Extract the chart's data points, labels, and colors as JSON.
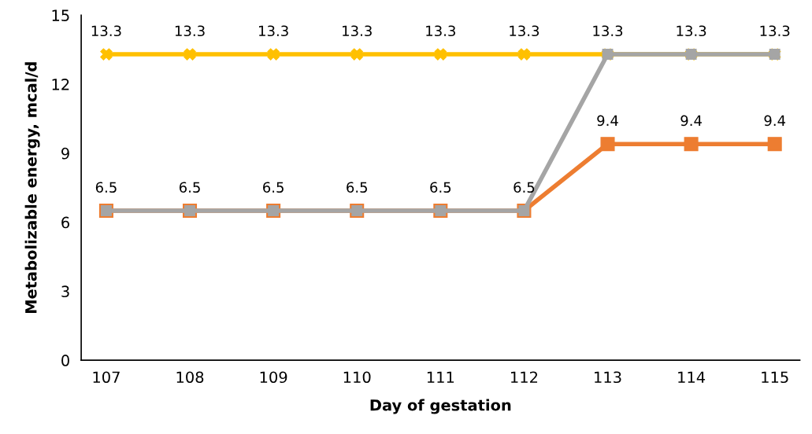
{
  "chart_data": {
    "type": "line",
    "xlabel": "Day of gestation",
    "ylabel": "Metabolizable energy, mcal/d",
    "categories": [
      "107",
      "108",
      "109",
      "110",
      "111",
      "112",
      "113",
      "114",
      "115"
    ],
    "ylim": [
      0,
      15
    ],
    "yticks": [
      0,
      3,
      6,
      9,
      12,
      15
    ],
    "grid": false,
    "legend": false,
    "line_style": "solid",
    "series": [
      {
        "color": "#ffc000",
        "marker": "cross",
        "values": [
          13.3,
          13.3,
          13.3,
          13.3,
          13.3,
          13.3,
          13.3,
          13.3,
          13.3
        ],
        "value_labels": [
          "13.3",
          "13.3",
          "13.3",
          "13.3",
          "13.3",
          "13.3",
          "13.3",
          "13.3",
          "13.3"
        ]
      },
      {
        "color": "#ed7d31",
        "marker": "square",
        "values": [
          6.5,
          6.5,
          6.5,
          6.5,
          6.5,
          6.5,
          9.4,
          9.4,
          9.4
        ],
        "value_labels": [
          "6.5",
          "6.5",
          "6.5",
          "6.5",
          "6.5",
          "6.5",
          "9.4",
          "9.4",
          "9.4"
        ]
      },
      {
        "color": "#a5a5a5",
        "marker": "square",
        "values": [
          6.5,
          6.5,
          6.5,
          6.5,
          6.5,
          6.5,
          13.3,
          13.3,
          13.3
        ]
      }
    ]
  }
}
